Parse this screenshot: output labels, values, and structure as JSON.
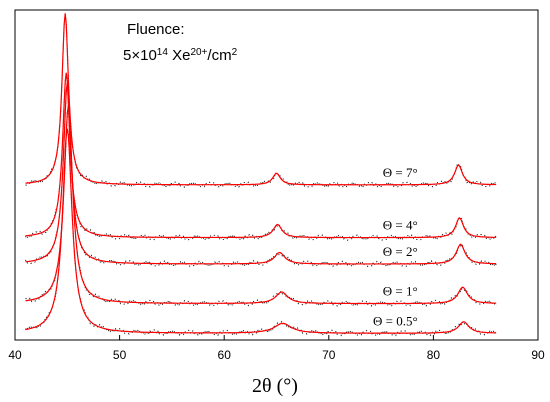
{
  "chart_data": {
    "type": "line",
    "xlabel": "2θ (°)",
    "ylabel": "",
    "xlim": [
      40,
      90
    ],
    "xticks": [
      40,
      50,
      60,
      70,
      80,
      90
    ],
    "ylim": [
      0,
      1
    ],
    "legend": "inline labels right",
    "grid": false,
    "annotation": {
      "line1": "Fluence:",
      "line2": "5×10",
      "line2_sup": "14",
      "line2_mid": " Xe",
      "line2_sup2": "20+",
      "line2_end": "/cm",
      "line2_sup3": "2"
    },
    "series": [
      {
        "name": "Θ = 0.5°",
        "offset": 0.02,
        "peaks": [
          {
            "x": 45.0,
            "h": 0.62,
            "w": 0.55
          },
          {
            "x": 65.6,
            "h": 0.03,
            "w": 1.0
          },
          {
            "x": 82.9,
            "h": 0.035,
            "w": 0.6
          }
        ]
      },
      {
        "name": "Θ = 1°",
        "offset": 0.11,
        "peaks": [
          {
            "x": 45.1,
            "h": 0.6,
            "w": 0.5
          },
          {
            "x": 65.5,
            "h": 0.035,
            "w": 0.7
          },
          {
            "x": 82.8,
            "h": 0.05,
            "w": 0.55
          }
        ]
      },
      {
        "name": "Θ = 2°",
        "offset": 0.23,
        "peaks": [
          {
            "x": 45.0,
            "h": 0.55,
            "w": 0.45
          },
          {
            "x": 65.3,
            "h": 0.035,
            "w": 0.6
          },
          {
            "x": 82.6,
            "h": 0.06,
            "w": 0.5
          }
        ]
      },
      {
        "name": "Θ = 4°",
        "offset": 0.31,
        "peaks": [
          {
            "x": 44.9,
            "h": 0.5,
            "w": 0.42
          },
          {
            "x": 65.1,
            "h": 0.04,
            "w": 0.5
          },
          {
            "x": 82.5,
            "h": 0.06,
            "w": 0.45
          }
        ]
      },
      {
        "name": "Θ = 7°",
        "offset": 0.47,
        "peaks": [
          {
            "x": 44.8,
            "h": 0.52,
            "w": 0.38
          },
          {
            "x": 65.0,
            "h": 0.035,
            "w": 0.45
          },
          {
            "x": 82.4,
            "h": 0.06,
            "w": 0.45
          }
        ]
      }
    ]
  }
}
